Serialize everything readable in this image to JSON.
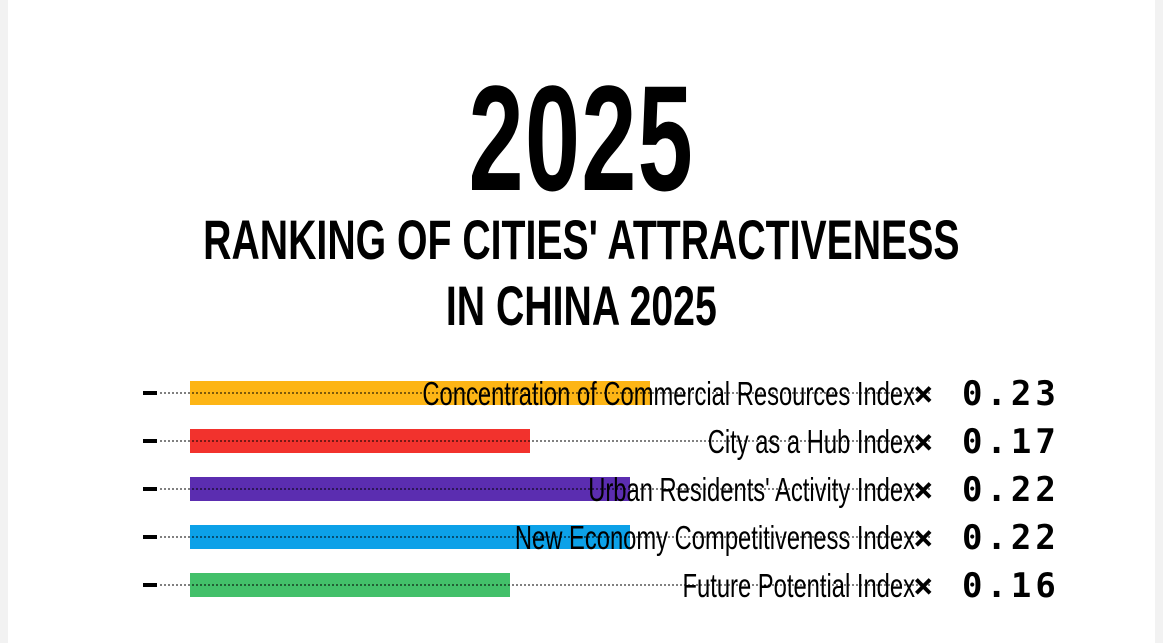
{
  "header": {
    "year": "2025",
    "title_line1": "RANKING OF CITIES' ATTRACTIVENESS",
    "title_line2": "IN CHINA 2025"
  },
  "chart_data": {
    "type": "bar",
    "orientation": "horizontal",
    "categories": [
      "Concentration of Commercial Resources Index",
      "City as a Hub Index",
      "Urban Residents' Activity Index",
      "New Economy Competitiveness Index",
      "Future Potential Index"
    ],
    "weight_labels": [
      "× 0.23",
      "× 0.17",
      "× 0.22",
      "× 0.22",
      "× 0.16"
    ],
    "values": [
      0.23,
      0.17,
      0.22,
      0.22,
      0.16
    ],
    "colors": [
      "#FDB515",
      "#F2322D",
      "#5B2DB0",
      "#0CA1E8",
      "#43C06A"
    ],
    "xlim": [
      0,
      0.23
    ],
    "grid": false,
    "legend": "none"
  }
}
